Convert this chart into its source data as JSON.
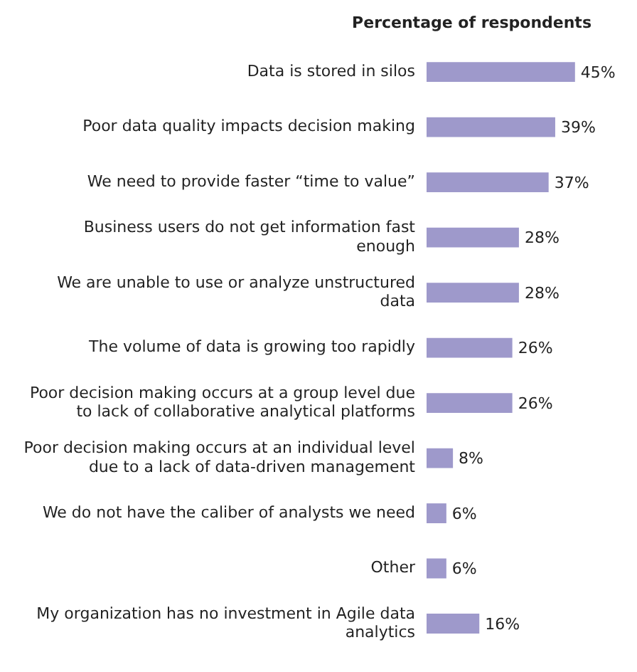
{
  "chart_data": {
    "type": "bar",
    "orientation": "horizontal",
    "title": "Percentage of respondents",
    "categories": [
      "Data is stored in silos",
      "Poor data quality impacts decision making",
      "We need to provide faster “time to value”",
      "Business users do not get information fast enough",
      "We are unable to use or analyze unstructured data",
      "The volume of data is growing too rapidly",
      "Poor decision making occurs at a group level due to lack of collaborative analytical platforms",
      "Poor decision making occurs at an individual level due to a lack of data-driven management",
      "We do not have the caliber of analysts we need",
      "Other",
      "My organization has no investment in Agile data analytics"
    ],
    "values": [
      45,
      39,
      37,
      28,
      28,
      26,
      26,
      8,
      6,
      6,
      16
    ],
    "color": "#9e99cb",
    "data_labels": true,
    "value_labels": [
      "45%",
      "39%",
      "37%",
      "28%",
      "28%",
      "26%",
      "26%",
      "8%",
      "6%",
      "6%",
      "16%"
    ],
    "legend": false
  }
}
